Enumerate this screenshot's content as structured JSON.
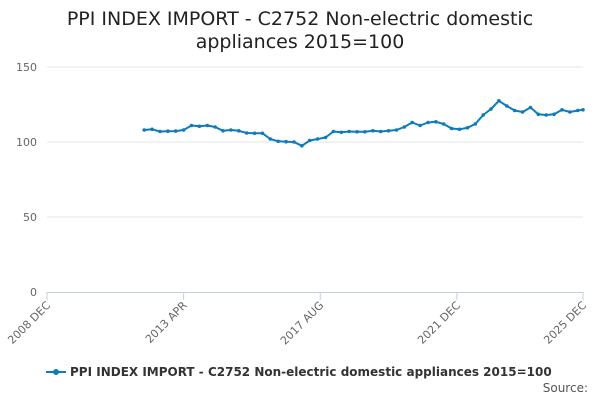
{
  "chart_data": {
    "type": "line",
    "title": "PPI INDEX IMPORT - C2752 Non-electric domestic appliances 2015=100",
    "title_lines": [
      "PPI INDEX IMPORT - C2752 Non-electric domestic",
      "appliances 2015=100"
    ],
    "xlabel": "",
    "ylabel": "",
    "ylim": [
      0,
      150
    ],
    "yticks": [
      "0",
      "50",
      "100",
      "150"
    ],
    "xticks": [
      "2008 DEC",
      "2013 APR",
      "2017 AUG",
      "2021 DEC",
      "2025 DEC"
    ],
    "xlim": [
      "2008-12",
      "2025-12"
    ],
    "grid": true,
    "legend_position": "bottom",
    "series": [
      {
        "name": "PPI INDEX IMPORT - C2752 Non-electric domestic appliances 2015=100",
        "color": "#0e7cba",
        "points": [
          [
            "2012-01",
            108.0
          ],
          [
            "2012-04",
            108.5
          ],
          [
            "2012-07",
            107.0
          ],
          [
            "2012-10",
            107.2
          ],
          [
            "2013-01",
            107.3
          ],
          [
            "2013-04",
            108.0
          ],
          [
            "2013-07",
            111.0
          ],
          [
            "2013-10",
            110.5
          ],
          [
            "2014-01",
            111.0
          ],
          [
            "2014-04",
            110.0
          ],
          [
            "2014-07",
            107.5
          ],
          [
            "2014-10",
            108.0
          ],
          [
            "2015-01",
            107.5
          ],
          [
            "2015-04",
            106.0
          ],
          [
            "2015-07",
            105.8
          ],
          [
            "2015-10",
            105.8
          ],
          [
            "2016-01",
            102.0
          ],
          [
            "2016-04",
            100.5
          ],
          [
            "2016-07",
            100.2
          ],
          [
            "2016-10",
            100.0
          ],
          [
            "2017-01",
            97.5
          ],
          [
            "2017-04",
            101.0
          ],
          [
            "2017-07",
            102.0
          ],
          [
            "2017-10",
            103.0
          ],
          [
            "2018-01",
            107.0
          ],
          [
            "2018-04",
            106.5
          ],
          [
            "2018-07",
            107.0
          ],
          [
            "2018-10",
            106.8
          ],
          [
            "2019-01",
            106.8
          ],
          [
            "2019-04",
            107.5
          ],
          [
            "2019-07",
            107.0
          ],
          [
            "2019-10",
            107.5
          ],
          [
            "2020-01",
            108.0
          ],
          [
            "2020-04",
            110.0
          ],
          [
            "2020-07",
            113.0
          ],
          [
            "2020-10",
            111.0
          ],
          [
            "2021-01",
            113.0
          ],
          [
            "2021-04",
            113.5
          ],
          [
            "2021-07",
            112.0
          ],
          [
            "2021-10",
            109.0
          ],
          [
            "2022-01",
            108.5
          ],
          [
            "2022-04",
            109.5
          ],
          [
            "2022-07",
            112.0
          ],
          [
            "2022-10",
            118.0
          ],
          [
            "2023-01",
            122.0
          ],
          [
            "2023-04",
            127.5
          ],
          [
            "2023-07",
            124.0
          ],
          [
            "2023-10",
            121.0
          ],
          [
            "2024-01",
            120.0
          ],
          [
            "2024-04",
            123.0
          ],
          [
            "2024-07",
            118.5
          ],
          [
            "2024-10",
            118.0
          ],
          [
            "2025-01",
            118.5
          ],
          [
            "2025-04",
            121.5
          ],
          [
            "2025-07",
            120.0
          ],
          [
            "2025-10",
            121.0
          ],
          [
            "2025-12",
            121.5
          ]
        ]
      }
    ]
  },
  "footer": {
    "source_label": "Source:"
  }
}
